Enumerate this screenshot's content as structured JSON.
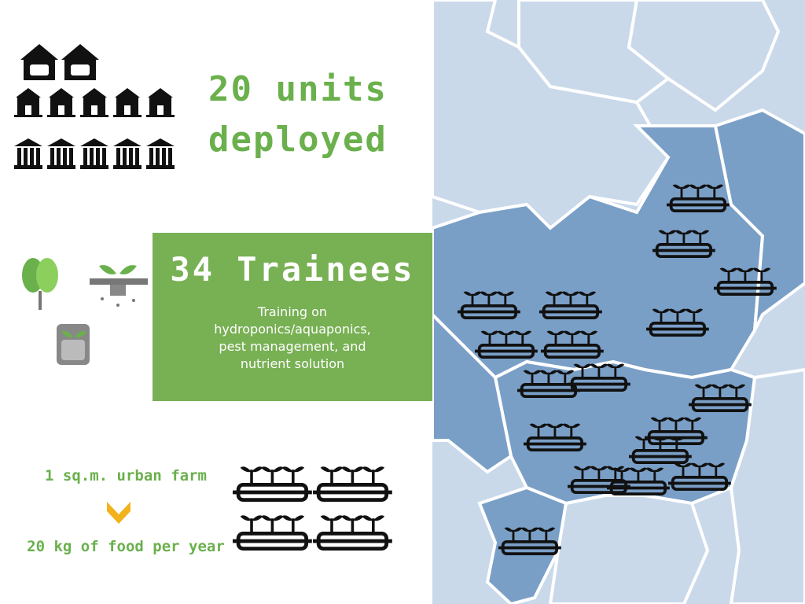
{
  "colors": {
    "accent_green": "#6ab04c",
    "box_green": "#78b054",
    "map_dark": "#7a9fc7",
    "map_light": "#c9d9ea",
    "arrow_yellow": "#f2b21c"
  },
  "headline": {
    "units_line1": "20 units",
    "units_line2": "deployed"
  },
  "training": {
    "count_label": "34 Trainees",
    "description_line1": "Training on",
    "description_line2": "hydroponics/aquaponics,",
    "description_line3": "pest management, and",
    "description_line4": "nutrient solution"
  },
  "farm": {
    "size_label": "1 sq.m. urban farm",
    "yield_label": "20 kg of food per year"
  },
  "icons": {
    "top_group": [
      "handshake-building-icon",
      "school-icon",
      "government-building-icon"
    ],
    "side_group": [
      "lettuce-icon",
      "hydroponic-seedling-icon",
      "seed-pot-icon"
    ],
    "farm_group": "hydroponic-tray-icon",
    "map_markers": "hydroponic-tray-icon"
  }
}
